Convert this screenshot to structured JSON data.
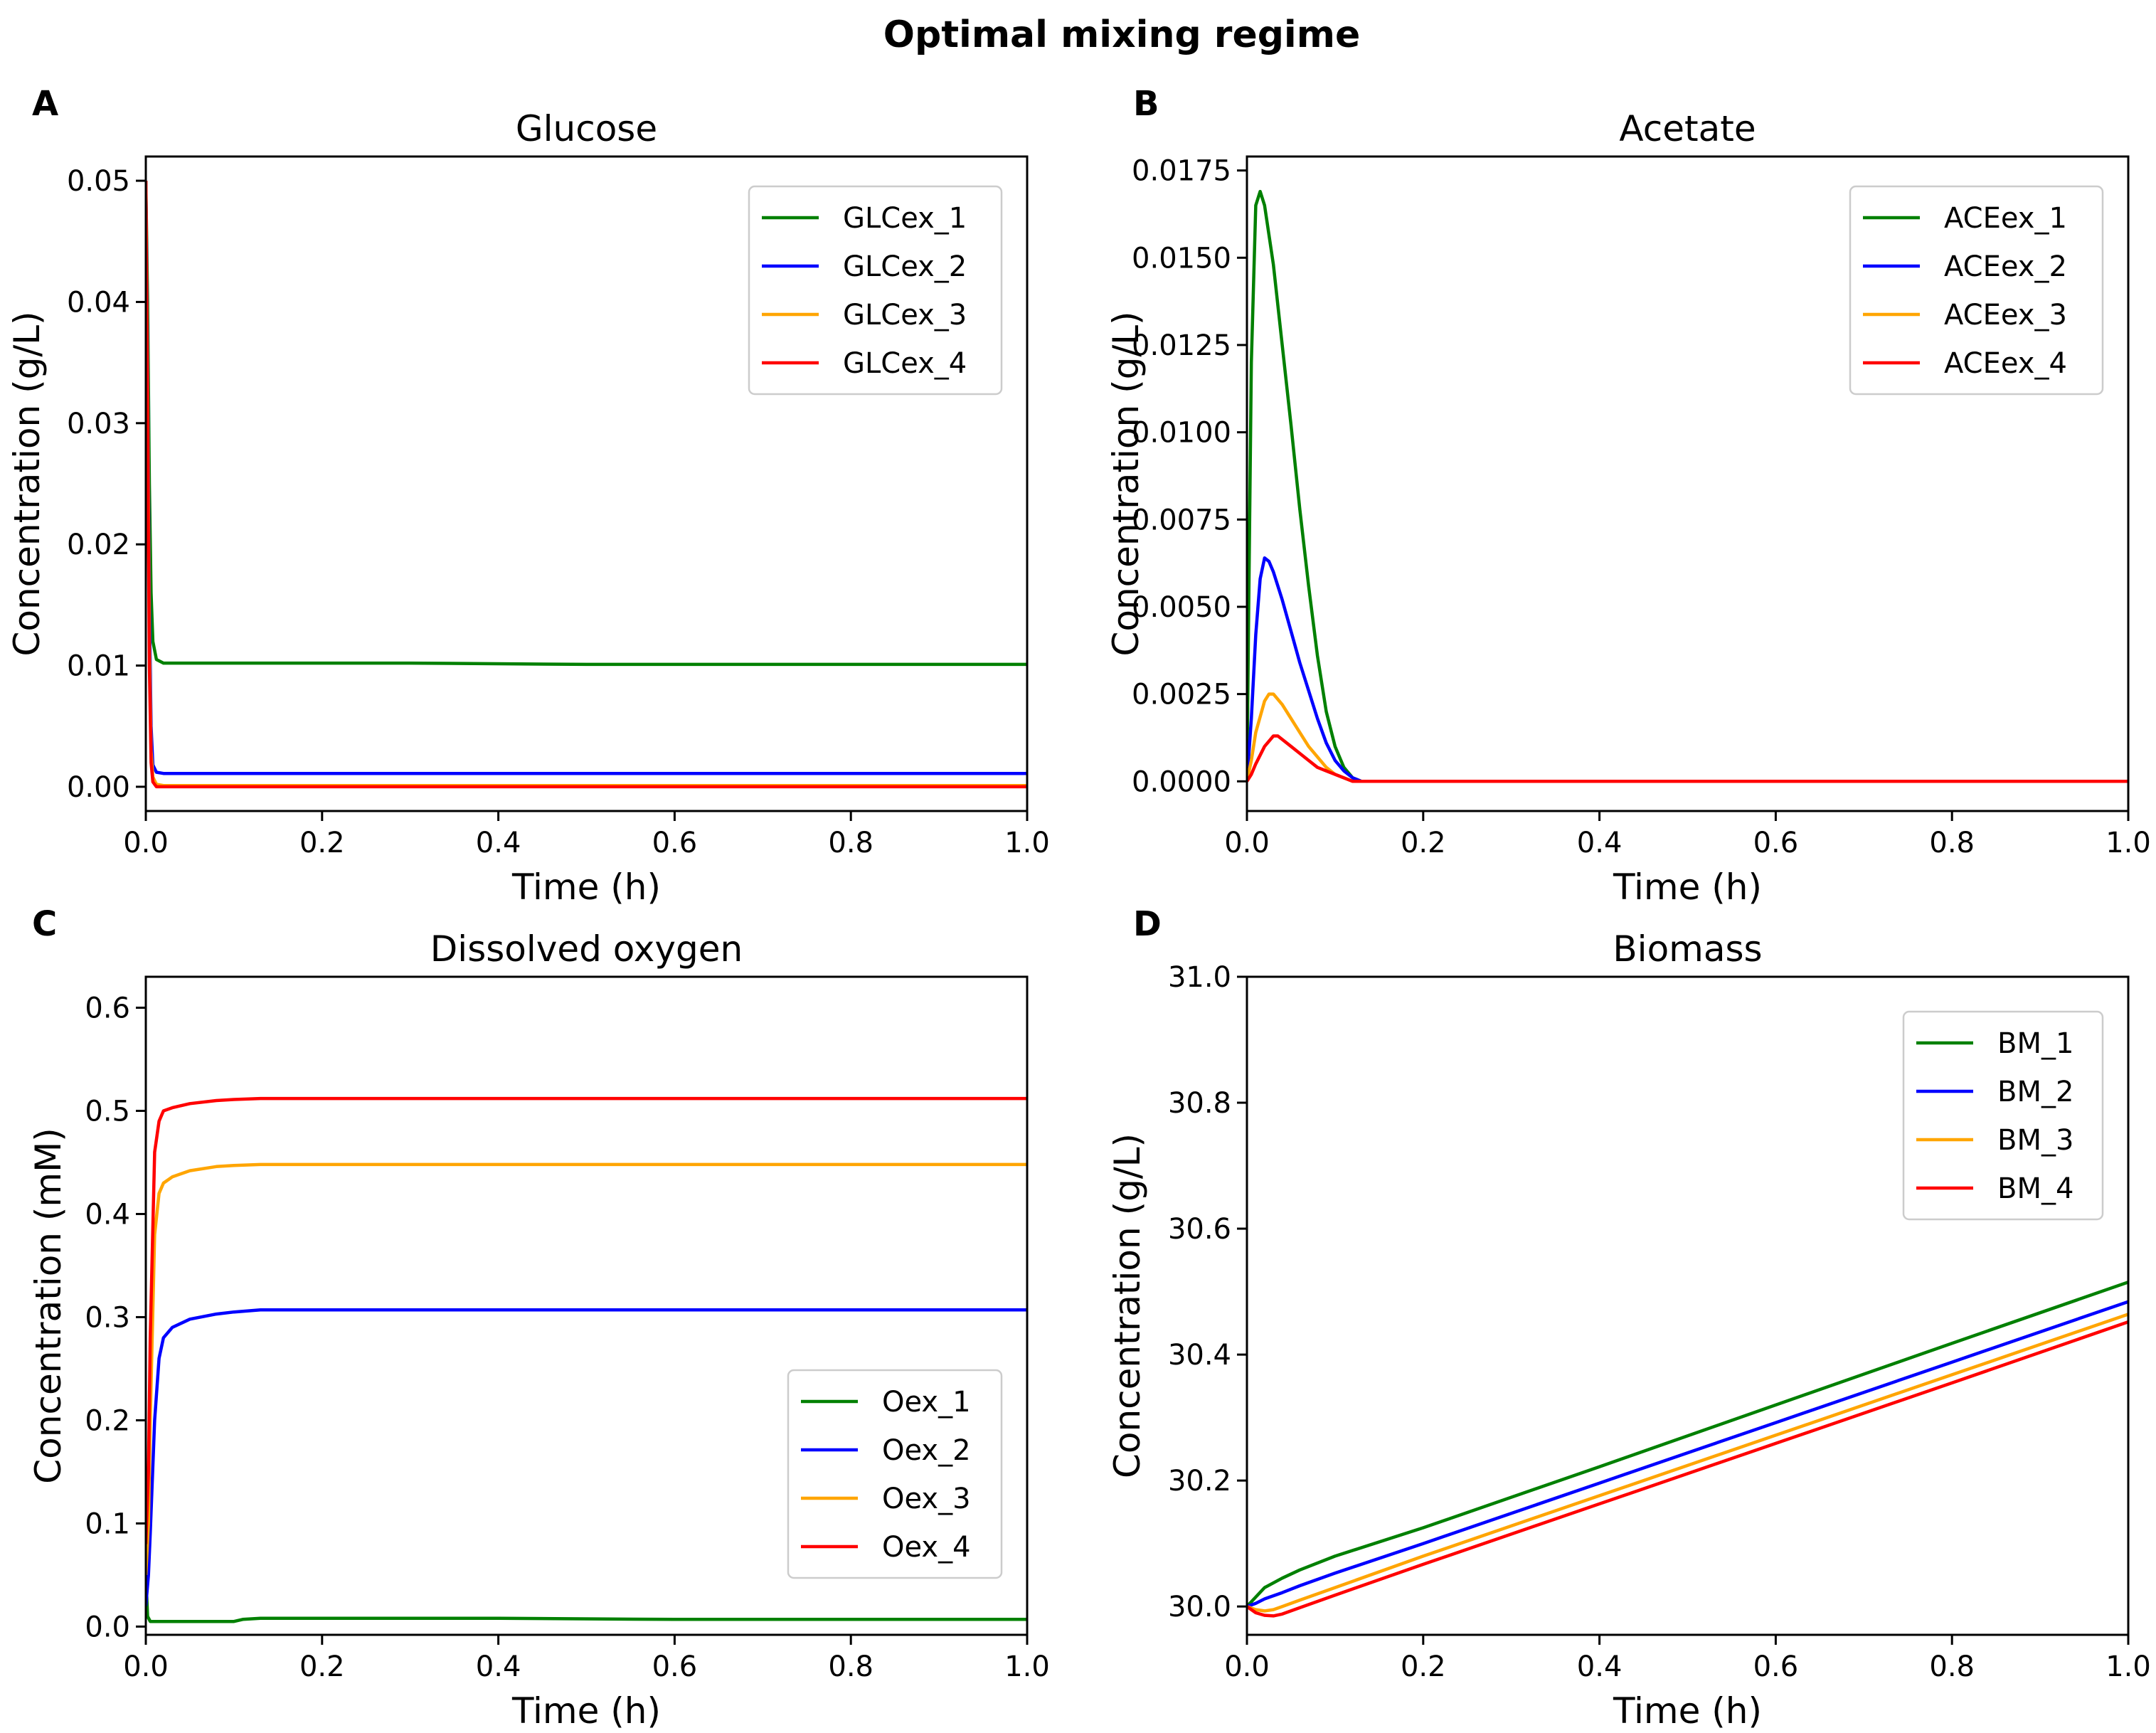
{
  "figure": {
    "suptitle": "Optimal mixing regime"
  },
  "chart_data": [
    {
      "type": "line",
      "panel": "A",
      "title": "Glucose",
      "xlabel": "Time (h)",
      "ylabel": "Concentration (g/L)",
      "xlim": [
        0.0,
        1.0
      ],
      "ylim": [
        -0.002,
        0.052
      ],
      "xticks": [
        0.0,
        0.2,
        0.4,
        0.6,
        0.8,
        1.0
      ],
      "xtick_labels": [
        "0.0",
        "0.2",
        "0.4",
        "0.6",
        "0.8",
        "1.0"
      ],
      "yticks": [
        0.0,
        0.01,
        0.02,
        0.03,
        0.04,
        0.05
      ],
      "ytick_labels": [
        "0.00",
        "0.01",
        "0.02",
        "0.03",
        "0.04",
        "0.05"
      ],
      "legend_position": "top-right",
      "series": [
        {
          "name": "GLCex_1",
          "color": "#008000",
          "x": [
            0,
            0.002,
            0.004,
            0.006,
            0.008,
            0.012,
            0.02,
            0.05,
            0.1,
            0.3,
            0.5,
            0.7,
            1.0
          ],
          "values": [
            0.05,
            0.04,
            0.025,
            0.016,
            0.012,
            0.0105,
            0.0102,
            0.0102,
            0.0102,
            0.0102,
            0.0101,
            0.0101,
            0.0101
          ]
        },
        {
          "name": "GLCex_2",
          "color": "#0000ff",
          "x": [
            0,
            0.002,
            0.004,
            0.006,
            0.008,
            0.012,
            0.02,
            0.1,
            0.5,
            1.0
          ],
          "values": [
            0.05,
            0.035,
            0.015,
            0.005,
            0.0018,
            0.0012,
            0.0011,
            0.0011,
            0.0011,
            0.0011
          ]
        },
        {
          "name": "GLCex_3",
          "color": "#ffa500",
          "x": [
            0,
            0.002,
            0.004,
            0.006,
            0.008,
            0.012,
            0.02,
            0.1,
            0.5,
            1.0
          ],
          "values": [
            0.05,
            0.033,
            0.012,
            0.003,
            0.0008,
            0.0002,
            0.0001,
            0.0001,
            0.0001,
            0.0001
          ]
        },
        {
          "name": "GLCex_4",
          "color": "#ff0000",
          "x": [
            0,
            0.002,
            0.004,
            0.006,
            0.008,
            0.012,
            0.02,
            0.1,
            0.5,
            1.0
          ],
          "values": [
            0.05,
            0.03,
            0.01,
            0.002,
            0.0004,
            0.0,
            0.0,
            0.0,
            0.0,
            0.0
          ]
        }
      ]
    },
    {
      "type": "line",
      "panel": "B",
      "title": "Acetate",
      "xlabel": "Time (h)",
      "ylabel": "Concentration (g/L)",
      "xlim": [
        0.0,
        1.0
      ],
      "ylim": [
        -0.00085,
        0.0179
      ],
      "xticks": [
        0.0,
        0.2,
        0.4,
        0.6,
        0.8,
        1.0
      ],
      "xtick_labels": [
        "0.0",
        "0.2",
        "0.4",
        "0.6",
        "0.8",
        "1.0"
      ],
      "yticks": [
        0.0,
        0.0025,
        0.005,
        0.0075,
        0.01,
        0.0125,
        0.015,
        0.0175
      ],
      "ytick_labels": [
        "0.0000",
        "0.0025",
        "0.0050",
        "0.0075",
        "0.0100",
        "0.0125",
        "0.0150",
        "0.0175"
      ],
      "legend_position": "top-right",
      "series": [
        {
          "name": "ACEex_1",
          "color": "#008000",
          "x": [
            0,
            0.002,
            0.005,
            0.01,
            0.015,
            0.02,
            0.03,
            0.04,
            0.05,
            0.06,
            0.07,
            0.08,
            0.09,
            0.1,
            0.11,
            0.12,
            0.13,
            0.14,
            0.2,
            0.5,
            1.0
          ],
          "values": [
            0,
            0.005,
            0.012,
            0.0165,
            0.0169,
            0.0165,
            0.0148,
            0.0125,
            0.0102,
            0.0078,
            0.0056,
            0.0036,
            0.002,
            0.001,
            0.0004,
            0.0001,
            0,
            0,
            0,
            0,
            0
          ]
        },
        {
          "name": "ACEex_2",
          "color": "#0000ff",
          "x": [
            0,
            0.005,
            0.01,
            0.015,
            0.02,
            0.025,
            0.03,
            0.04,
            0.05,
            0.06,
            0.07,
            0.08,
            0.09,
            0.1,
            0.11,
            0.12,
            0.13,
            0.2,
            0.5,
            1.0
          ],
          "values": [
            0,
            0.0018,
            0.0042,
            0.0058,
            0.0064,
            0.0063,
            0.006,
            0.0052,
            0.0043,
            0.0034,
            0.0026,
            0.0018,
            0.0011,
            0.0006,
            0.0003,
            0.0001,
            0,
            0,
            0,
            0
          ]
        },
        {
          "name": "ACEex_3",
          "color": "#ffa500",
          "x": [
            0,
            0.005,
            0.01,
            0.02,
            0.025,
            0.03,
            0.04,
            0.05,
            0.06,
            0.07,
            0.08,
            0.09,
            0.1,
            0.11,
            0.12,
            0.13,
            0.2,
            0.5,
            1.0
          ],
          "values": [
            0,
            0.0006,
            0.0014,
            0.0023,
            0.0025,
            0.0025,
            0.0022,
            0.0018,
            0.0014,
            0.001,
            0.0007,
            0.0004,
            0.0002,
            0.0001,
            0,
            0,
            0,
            0,
            0
          ]
        },
        {
          "name": "ACEex_4",
          "color": "#ff0000",
          "x": [
            0,
            0.005,
            0.01,
            0.02,
            0.03,
            0.035,
            0.04,
            0.05,
            0.06,
            0.07,
            0.08,
            0.09,
            0.1,
            0.11,
            0.12,
            0.13,
            0.2,
            0.5,
            1.0
          ],
          "values": [
            0,
            0.0002,
            0.0005,
            0.001,
            0.0013,
            0.0013,
            0.0012,
            0.001,
            0.0008,
            0.0006,
            0.0004,
            0.0003,
            0.0002,
            0.0001,
            0,
            0,
            0,
            0,
            0
          ]
        }
      ]
    },
    {
      "type": "line",
      "panel": "C",
      "title": "Dissolved oxygen",
      "xlabel": "Time (h)",
      "ylabel": "Concentration (mM)",
      "xlim": [
        0.0,
        1.0
      ],
      "ylim": [
        -0.008,
        0.63
      ],
      "xticks": [
        0.0,
        0.2,
        0.4,
        0.6,
        0.8,
        1.0
      ],
      "xtick_labels": [
        "0.0",
        "0.2",
        "0.4",
        "0.6",
        "0.8",
        "1.0"
      ],
      "yticks": [
        0.0,
        0.1,
        0.2,
        0.3,
        0.4,
        0.5,
        0.6
      ],
      "ytick_labels": [
        "0.0",
        "0.1",
        "0.2",
        "0.3",
        "0.4",
        "0.5",
        "0.6"
      ],
      "legend_position": "lower-right",
      "series": [
        {
          "name": "Oex_1",
          "color": "#008000",
          "x": [
            0,
            0.002,
            0.005,
            0.01,
            0.05,
            0.1,
            0.11,
            0.13,
            0.2,
            0.4,
            0.6,
            0.8,
            1.0
          ],
          "values": [
            0.05,
            0.01,
            0.005,
            0.005,
            0.005,
            0.005,
            0.007,
            0.008,
            0.008,
            0.008,
            0.007,
            0.007,
            0.007
          ]
        },
        {
          "name": "Oex_2",
          "color": "#0000ff",
          "x": [
            0,
            0.003,
            0.005,
            0.01,
            0.015,
            0.02,
            0.03,
            0.05,
            0.08,
            0.1,
            0.13,
            0.2,
            0.5,
            1.0
          ],
          "values": [
            0.02,
            0.05,
            0.09,
            0.2,
            0.26,
            0.28,
            0.29,
            0.298,
            0.303,
            0.305,
            0.307,
            0.307,
            0.307,
            0.307
          ]
        },
        {
          "name": "Oex_3",
          "color": "#ffa500",
          "x": [
            0,
            0.003,
            0.005,
            0.01,
            0.015,
            0.02,
            0.03,
            0.05,
            0.08,
            0.1,
            0.13,
            0.2,
            0.5,
            1.0
          ],
          "values": [
            0.05,
            0.1,
            0.2,
            0.38,
            0.42,
            0.43,
            0.436,
            0.442,
            0.446,
            0.447,
            0.448,
            0.448,
            0.448,
            0.448
          ]
        },
        {
          "name": "Oex_4",
          "color": "#ff0000",
          "x": [
            0,
            0.003,
            0.005,
            0.01,
            0.015,
            0.02,
            0.03,
            0.05,
            0.08,
            0.1,
            0.13,
            0.2,
            0.5,
            1.0
          ],
          "values": [
            0.08,
            0.15,
            0.28,
            0.46,
            0.49,
            0.5,
            0.503,
            0.507,
            0.51,
            0.511,
            0.512,
            0.512,
            0.512,
            0.512
          ]
        }
      ]
    },
    {
      "type": "line",
      "panel": "D",
      "title": "Biomass",
      "xlabel": "Time (h)",
      "ylabel": "Concentration (g/L)",
      "xlim": [
        0.0,
        1.0
      ],
      "ylim": [
        29.955,
        31.0
      ],
      "xticks": [
        0.0,
        0.2,
        0.4,
        0.6,
        0.8,
        1.0
      ],
      "xtick_labels": [
        "0.0",
        "0.2",
        "0.4",
        "0.6",
        "0.8",
        "1.0"
      ],
      "yticks": [
        30.0,
        30.2,
        30.4,
        30.6,
        30.8,
        31.0
      ],
      "ytick_labels": [
        "30.0",
        "30.2",
        "30.4",
        "30.6",
        "30.8",
        "31.0"
      ],
      "legend_position": "top-right",
      "series": [
        {
          "name": "BM_1",
          "color": "#008000",
          "x": [
            0,
            0.01,
            0.02,
            0.04,
            0.06,
            0.1,
            0.2,
            0.4,
            0.6,
            0.8,
            1.0
          ],
          "values": [
            30.0,
            30.015,
            30.03,
            30.045,
            30.058,
            30.08,
            30.125,
            30.222,
            30.32,
            30.418,
            30.515
          ]
        },
        {
          "name": "BM_2",
          "color": "#0000ff",
          "x": [
            0,
            0.01,
            0.02,
            0.04,
            0.06,
            0.1,
            0.2,
            0.4,
            0.6,
            0.8,
            1.0
          ],
          "values": [
            30.0,
            30.005,
            30.012,
            30.022,
            30.033,
            30.053,
            30.1,
            30.196,
            30.292,
            30.388,
            30.484
          ]
        },
        {
          "name": "BM_3",
          "color": "#ffa500",
          "x": [
            0,
            0.01,
            0.02,
            0.03,
            0.04,
            0.06,
            0.1,
            0.2,
            0.4,
            0.6,
            0.8,
            1.0
          ],
          "values": [
            30.0,
            29.995,
            29.993,
            29.995,
            30.0,
            30.01,
            30.03,
            30.08,
            30.176,
            30.272,
            30.368,
            30.464
          ]
        },
        {
          "name": "BM_4",
          "color": "#ff0000",
          "x": [
            0,
            0.01,
            0.02,
            0.03,
            0.04,
            0.06,
            0.1,
            0.2,
            0.4,
            0.6,
            0.8,
            1.0
          ],
          "values": [
            30.0,
            29.99,
            29.986,
            29.985,
            29.988,
            29.998,
            30.018,
            30.067,
            30.163,
            30.259,
            30.355,
            30.452
          ]
        }
      ]
    }
  ]
}
